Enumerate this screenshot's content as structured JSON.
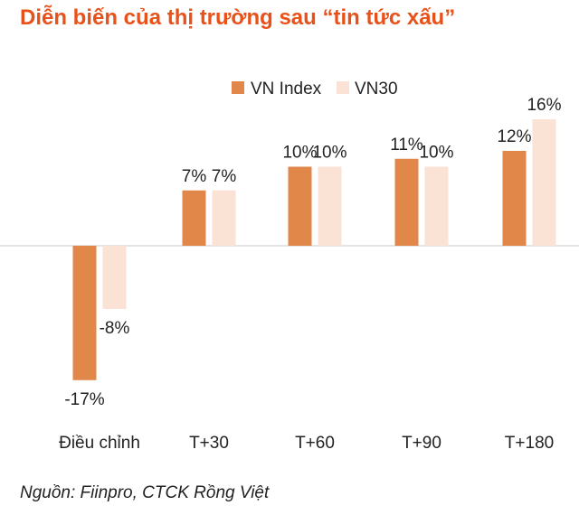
{
  "title": "Diễn biến của thị trường sau “tin tức xấu”",
  "source": "Nguồn: Fiinpro, CTCK Rồng Việt",
  "colors": {
    "title": "#e8521a",
    "vnindex": "#e2874a",
    "vn30": "#fae3d4",
    "axis": "#c8c8c8",
    "text": "#222222"
  },
  "chart_data": {
    "type": "bar",
    "title": "Diễn biến của thị trường sau “tin tức xấu”",
    "xlabel": "",
    "ylabel": "",
    "ylim": [
      -17,
      16
    ],
    "categories": [
      "Điều chỉnh",
      "T+30",
      "T+60",
      "T+90",
      "T+180"
    ],
    "series": [
      {
        "name": "VN Index",
        "values": [
          -17,
          7,
          10,
          11,
          12
        ],
        "labels": [
          "-17%",
          "7%",
          "10%",
          "11%",
          "12%"
        ]
      },
      {
        "name": "VN30",
        "values": [
          -8,
          7,
          10,
          10,
          16
        ],
        "labels": [
          "-8%",
          "7%",
          "10%",
          "10%",
          "16%"
        ]
      }
    ],
    "legend": [
      "VN Index",
      "VN30"
    ],
    "legend_position": "top-right",
    "grid": false
  }
}
